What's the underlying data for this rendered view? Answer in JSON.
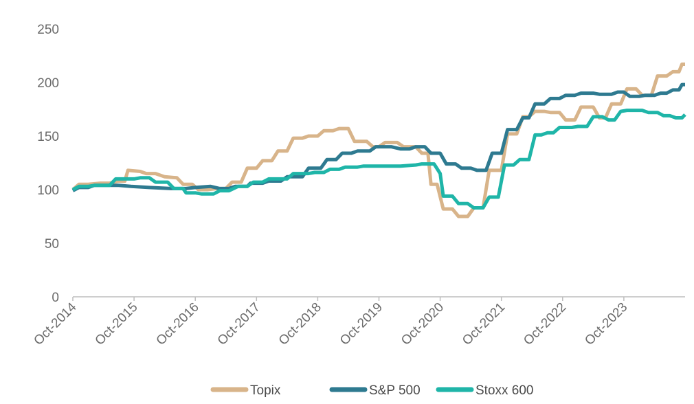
{
  "chart_data": {
    "type": "line",
    "title": "",
    "xlabel": "",
    "ylabel": "",
    "ylim": [
      0,
      250
    ],
    "yticks": [
      0,
      50,
      100,
      150,
      200,
      250
    ],
    "x_tick_labels": [
      "Oct-2014",
      "Oct-2015",
      "Oct-2016",
      "Oct-2017",
      "Oct-2018",
      "Oct-2019",
      "Oct-2020",
      "Oct-2021",
      "Oct-2022",
      "Oct-2023"
    ],
    "x_range_years": [
      2014.75,
      2024.75
    ],
    "grid": false,
    "legend_position": "bottom",
    "series": [
      {
        "name": "Topix",
        "color": "#d8b48a",
        "points": [
          [
            2014.75,
            100
          ],
          [
            2014.85,
            105
          ],
          [
            2015.0,
            105
          ],
          [
            2015.2,
            106
          ],
          [
            2015.35,
            106
          ],
          [
            2015.5,
            108
          ],
          [
            2015.6,
            108
          ],
          [
            2015.65,
            118
          ],
          [
            2015.85,
            117
          ],
          [
            2015.95,
            115
          ],
          [
            2016.1,
            115
          ],
          [
            2016.25,
            112
          ],
          [
            2016.45,
            111
          ],
          [
            2016.55,
            105
          ],
          [
            2016.7,
            105
          ],
          [
            2016.8,
            100
          ],
          [
            2016.95,
            100
          ],
          [
            2017.1,
            101
          ],
          [
            2017.25,
            101
          ],
          [
            2017.35,
            107
          ],
          [
            2017.5,
            107
          ],
          [
            2017.6,
            120
          ],
          [
            2017.75,
            120
          ],
          [
            2017.85,
            127
          ],
          [
            2018.0,
            127
          ],
          [
            2018.1,
            136
          ],
          [
            2018.25,
            136
          ],
          [
            2018.35,
            148
          ],
          [
            2018.5,
            148
          ],
          [
            2018.6,
            150
          ],
          [
            2018.75,
            150
          ],
          [
            2018.85,
            155
          ],
          [
            2019.0,
            155
          ],
          [
            2019.1,
            157
          ],
          [
            2019.25,
            157
          ],
          [
            2019.35,
            145
          ],
          [
            2019.55,
            145
          ],
          [
            2019.65,
            140
          ],
          [
            2019.75,
            140
          ],
          [
            2019.85,
            144
          ],
          [
            2020.05,
            144
          ],
          [
            2020.15,
            140
          ],
          [
            2020.35,
            140
          ],
          [
            2020.45,
            134
          ],
          [
            2020.55,
            134
          ],
          [
            2020.6,
            105
          ],
          [
            2020.7,
            105
          ],
          [
            2020.8,
            82
          ],
          [
            2020.95,
            82
          ],
          [
            2021.05,
            75
          ],
          [
            2021.2,
            75
          ],
          [
            2021.3,
            83
          ],
          [
            2021.45,
            83
          ],
          [
            2021.55,
            118
          ],
          [
            2021.75,
            118
          ],
          [
            2021.85,
            152
          ],
          [
            2022.0,
            152
          ],
          [
            2022.1,
            168
          ],
          [
            2022.2,
            168
          ],
          [
            2022.3,
            173
          ],
          [
            2022.45,
            173
          ],
          [
            2022.55,
            172
          ],
          [
            2022.7,
            172
          ],
          [
            2022.8,
            165
          ],
          [
            2022.95,
            165
          ],
          [
            2023.05,
            177
          ],
          [
            2023.25,
            177
          ],
          [
            2023.35,
            167
          ],
          [
            2023.45,
            167
          ],
          [
            2023.55,
            180
          ],
          [
            2023.7,
            180
          ],
          [
            2023.8,
            194
          ],
          [
            2023.95,
            194
          ],
          [
            2024.05,
            188
          ],
          [
            2024.2,
            188
          ],
          [
            2024.3,
            206
          ],
          [
            2024.45,
            206
          ],
          [
            2024.55,
            210
          ],
          [
            2024.65,
            210
          ],
          [
            2024.7,
            217
          ],
          [
            2024.75,
            217
          ]
        ]
      },
      {
        "name": "S&P 500",
        "color": "#2e7a90",
        "points": [
          [
            2014.75,
            99
          ],
          [
            2014.85,
            102
          ],
          [
            2015.0,
            102
          ],
          [
            2015.1,
            104
          ],
          [
            2015.5,
            104
          ],
          [
            2015.7,
            103
          ],
          [
            2016.0,
            102
          ],
          [
            2016.35,
            101
          ],
          [
            2016.6,
            101
          ],
          [
            2016.75,
            102
          ],
          [
            2017.0,
            103
          ],
          [
            2017.15,
            101
          ],
          [
            2017.3,
            101
          ],
          [
            2017.4,
            103
          ],
          [
            2017.6,
            103
          ],
          [
            2017.65,
            106
          ],
          [
            2017.85,
            106
          ],
          [
            2017.95,
            108
          ],
          [
            2018.15,
            108
          ],
          [
            2018.25,
            112
          ],
          [
            2018.5,
            112
          ],
          [
            2018.6,
            120
          ],
          [
            2018.8,
            120
          ],
          [
            2018.9,
            128
          ],
          [
            2019.05,
            128
          ],
          [
            2019.15,
            134
          ],
          [
            2019.3,
            134
          ],
          [
            2019.4,
            136
          ],
          [
            2019.6,
            136
          ],
          [
            2019.7,
            140
          ],
          [
            2019.95,
            140
          ],
          [
            2020.1,
            138
          ],
          [
            2020.25,
            138
          ],
          [
            2020.35,
            140
          ],
          [
            2020.5,
            140
          ],
          [
            2020.6,
            134
          ],
          [
            2020.75,
            134
          ],
          [
            2020.85,
            124
          ],
          [
            2021.0,
            124
          ],
          [
            2021.1,
            120
          ],
          [
            2021.25,
            120
          ],
          [
            2021.35,
            118
          ],
          [
            2021.5,
            118
          ],
          [
            2021.6,
            134
          ],
          [
            2021.75,
            134
          ],
          [
            2021.85,
            156
          ],
          [
            2022.0,
            156
          ],
          [
            2022.1,
            167
          ],
          [
            2022.2,
            167
          ],
          [
            2022.3,
            180
          ],
          [
            2022.45,
            180
          ],
          [
            2022.55,
            185
          ],
          [
            2022.7,
            185
          ],
          [
            2022.8,
            188
          ],
          [
            2022.95,
            188
          ],
          [
            2023.05,
            190
          ],
          [
            2023.25,
            190
          ],
          [
            2023.35,
            189
          ],
          [
            2023.55,
            189
          ],
          [
            2023.65,
            191
          ],
          [
            2023.75,
            191
          ],
          [
            2023.85,
            187
          ],
          [
            2024.0,
            187
          ],
          [
            2024.1,
            188
          ],
          [
            2024.25,
            188
          ],
          [
            2024.35,
            190
          ],
          [
            2024.45,
            190
          ],
          [
            2024.55,
            193
          ],
          [
            2024.65,
            193
          ],
          [
            2024.7,
            198
          ],
          [
            2024.75,
            198
          ]
        ]
      },
      {
        "name": "Stoxx 600",
        "color": "#1fb5a8",
        "points": [
          [
            2014.75,
            100
          ],
          [
            2014.85,
            103
          ],
          [
            2015.0,
            103
          ],
          [
            2015.1,
            104
          ],
          [
            2015.35,
            104
          ],
          [
            2015.45,
            110
          ],
          [
            2015.75,
            110
          ],
          [
            2015.85,
            111
          ],
          [
            2016.0,
            111
          ],
          [
            2016.1,
            107
          ],
          [
            2016.3,
            107
          ],
          [
            2016.4,
            101
          ],
          [
            2016.55,
            101
          ],
          [
            2016.6,
            97
          ],
          [
            2016.75,
            97
          ],
          [
            2016.85,
            96
          ],
          [
            2017.05,
            96
          ],
          [
            2017.15,
            99
          ],
          [
            2017.3,
            99
          ],
          [
            2017.45,
            103
          ],
          [
            2017.6,
            103
          ],
          [
            2017.7,
            107
          ],
          [
            2017.85,
            107
          ],
          [
            2017.95,
            110
          ],
          [
            2018.25,
            110
          ],
          [
            2018.35,
            115
          ],
          [
            2018.6,
            115
          ],
          [
            2018.7,
            116
          ],
          [
            2018.85,
            116
          ],
          [
            2018.95,
            119
          ],
          [
            2019.1,
            119
          ],
          [
            2019.2,
            121
          ],
          [
            2019.4,
            121
          ],
          [
            2019.5,
            122
          ],
          [
            2019.9,
            122
          ],
          [
            2020.1,
            122
          ],
          [
            2020.35,
            123
          ],
          [
            2020.45,
            124
          ],
          [
            2020.65,
            124
          ],
          [
            2020.75,
            115
          ],
          [
            2020.8,
            94
          ],
          [
            2020.95,
            94
          ],
          [
            2021.05,
            87
          ],
          [
            2021.2,
            87
          ],
          [
            2021.3,
            83
          ],
          [
            2021.45,
            83
          ],
          [
            2021.55,
            93
          ],
          [
            2021.7,
            93
          ],
          [
            2021.8,
            123
          ],
          [
            2021.95,
            123
          ],
          [
            2022.05,
            128
          ],
          [
            2022.2,
            128
          ],
          [
            2022.3,
            151
          ],
          [
            2022.4,
            151
          ],
          [
            2022.5,
            153
          ],
          [
            2022.6,
            153
          ],
          [
            2022.7,
            158
          ],
          [
            2022.9,
            158
          ],
          [
            2023.0,
            159
          ],
          [
            2023.15,
            159
          ],
          [
            2023.25,
            168
          ],
          [
            2023.4,
            168
          ],
          [
            2023.5,
            165
          ],
          [
            2023.6,
            165
          ],
          [
            2023.7,
            173
          ],
          [
            2023.8,
            174
          ],
          [
            2024.05,
            174
          ],
          [
            2024.15,
            172
          ],
          [
            2024.3,
            172
          ],
          [
            2024.4,
            169
          ],
          [
            2024.5,
            169
          ],
          [
            2024.6,
            167
          ],
          [
            2024.7,
            167
          ],
          [
            2024.75,
            170
          ]
        ]
      }
    ]
  }
}
